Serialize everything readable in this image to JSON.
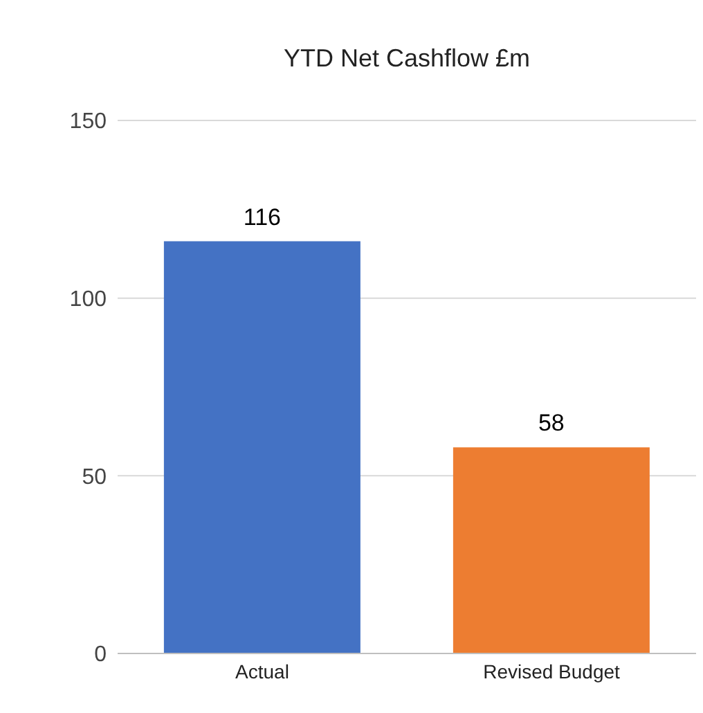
{
  "chart_data": {
    "type": "bar",
    "title": "YTD Net Cashflow £m",
    "categories": [
      "Actual",
      "Revised Budget"
    ],
    "values": [
      116,
      58
    ],
    "colors": [
      "#4472c4",
      "#ed7d31"
    ],
    "ylim": [
      0,
      150
    ],
    "yticks": [
      0,
      50,
      100,
      150
    ],
    "grid": "y",
    "data_labels": true
  }
}
